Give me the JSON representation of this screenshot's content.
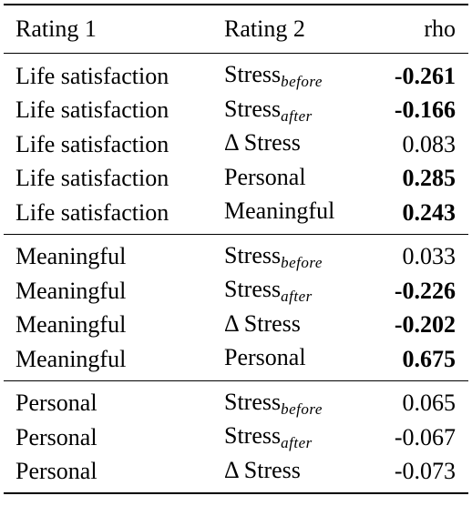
{
  "header": {
    "col1": "Rating 1",
    "col2": "Rating 2",
    "col3": "rho"
  },
  "groups": [
    {
      "rows": [
        {
          "r1": "Life satisfaction",
          "r2_main": "Stress",
          "r2_sub": "before",
          "rho": "-0.261",
          "bold": true
        },
        {
          "r1": "Life satisfaction",
          "r2_main": "Stress",
          "r2_sub": "after",
          "rho": "-0.166",
          "bold": true
        },
        {
          "r1": "Life satisfaction",
          "r2_main": "Δ Stress",
          "r2_sub": "",
          "rho": "0.083",
          "bold": false
        },
        {
          "r1": "Life satisfaction",
          "r2_main": "Personal",
          "r2_sub": "",
          "rho": "0.285",
          "bold": true
        },
        {
          "r1": "Life satisfaction",
          "r2_main": "Meaningful",
          "r2_sub": "",
          "rho": "0.243",
          "bold": true
        }
      ]
    },
    {
      "rows": [
        {
          "r1": "Meaningful",
          "r2_main": "Stress",
          "r2_sub": "before",
          "rho": "0.033",
          "bold": false
        },
        {
          "r1": "Meaningful",
          "r2_main": "Stress",
          "r2_sub": "after",
          "rho": "-0.226",
          "bold": true
        },
        {
          "r1": "Meaningful",
          "r2_main": "Δ Stress",
          "r2_sub": "",
          "rho": "-0.202",
          "bold": true
        },
        {
          "r1": "Meaningful",
          "r2_main": "Personal",
          "r2_sub": "",
          "rho": "0.675",
          "bold": true
        }
      ]
    },
    {
      "rows": [
        {
          "r1": "Personal",
          "r2_main": "Stress",
          "r2_sub": "before",
          "rho": "0.065",
          "bold": false
        },
        {
          "r1": "Personal",
          "r2_main": "Stress",
          "r2_sub": "after",
          "rho": "-0.067",
          "bold": false
        },
        {
          "r1": "Personal",
          "r2_main": "Δ Stress",
          "r2_sub": "",
          "rho": "-0.073",
          "bold": false
        }
      ]
    }
  ]
}
